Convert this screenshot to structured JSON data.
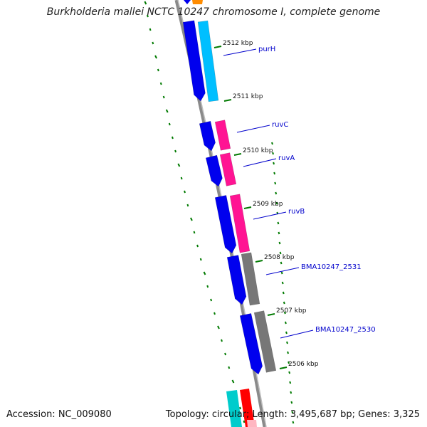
{
  "title": "Burkholderia mallei NCTC 10247 chromosome I, complete genome",
  "footer": {
    "accession": "Accession: NC_009080",
    "stats": "Topology: circular; Length: 3,495,687 bp; Genes: 3,325"
  },
  "colors": {
    "forward_strand": "#0000ee",
    "forward_strand_light": "#00bfff",
    "pink": "#ff1493",
    "gray": "#777777",
    "backbone": "#8a8a8a",
    "tick": "#007a00",
    "label": "#0000cc",
    "red": "#ff0000",
    "cyan": "#00cccc"
  },
  "kbp_markers": [
    "2512 kbp",
    "2511 kbp",
    "2510 kbp",
    "2509 kbp",
    "2508 kbp",
    "2507 kbp",
    "2506 kbp"
  ],
  "genes": [
    {
      "name": "purH",
      "ring_color": "light-blue"
    },
    {
      "name": "ruvC",
      "ring_color": "pink"
    },
    {
      "name": "ruvA",
      "ring_color": "pink"
    },
    {
      "name": "ruvB",
      "ring_color": "pink"
    },
    {
      "name": "BMA10247_2531",
      "ring_color": "gray"
    },
    {
      "name": "BMA10247_2530",
      "ring_color": "gray"
    }
  ]
}
